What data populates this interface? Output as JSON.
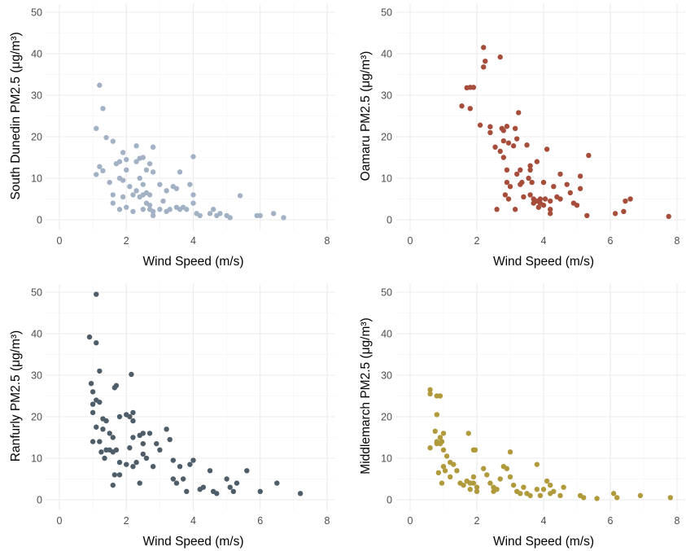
{
  "chart_data": [
    {
      "type": "scatter",
      "xlabel": "Wind Speed (m/s)",
      "ylabel": "South Dunedin PM2.5 (μg/m³)",
      "xlim": [
        0,
        8
      ],
      "ylim": [
        0,
        50
      ],
      "xticks": [
        0,
        2,
        4,
        8
      ],
      "yticks": [
        0,
        10,
        20,
        30,
        40,
        50
      ],
      "color": "#A2B2C4",
      "points": [
        [
          1.2,
          32.4
        ],
        [
          1.3,
          26.8
        ],
        [
          1.1,
          22.0
        ],
        [
          1.4,
          19.8
        ],
        [
          1.6,
          18.9
        ],
        [
          1.2,
          12.8
        ],
        [
          1.3,
          11.8
        ],
        [
          1.1,
          10.9
        ],
        [
          1.5,
          9.0
        ],
        [
          1.6,
          6.0
        ],
        [
          1.6,
          4.0
        ],
        [
          1.8,
          2.5
        ],
        [
          1.8,
          14.0
        ],
        [
          1.9,
          16.2
        ],
        [
          1.7,
          13.5
        ],
        [
          1.8,
          10.0
        ],
        [
          1.9,
          9.5
        ],
        [
          2.0,
          14.5
        ],
        [
          2.0,
          12.0
        ],
        [
          2.1,
          8.0
        ],
        [
          2.2,
          6.0
        ],
        [
          2.2,
          2.0
        ],
        [
          2.0,
          3.0
        ],
        [
          1.9,
          5.5
        ],
        [
          2.3,
          17.8
        ],
        [
          2.3,
          14.0
        ],
        [
          2.5,
          15.0
        ],
        [
          2.4,
          14.8
        ],
        [
          2.4,
          10.0
        ],
        [
          2.5,
          8.5
        ],
        [
          2.3,
          7.0
        ],
        [
          2.6,
          6.5
        ],
        [
          2.4,
          5.5
        ],
        [
          2.5,
          6.0
        ],
        [
          2.6,
          4.0
        ],
        [
          2.7,
          3.5
        ],
        [
          2.7,
          2.5
        ],
        [
          2.8,
          2.0
        ],
        [
          2.8,
          1.0
        ],
        [
          2.8,
          17.5
        ],
        [
          2.7,
          13.5
        ],
        [
          2.6,
          12.0
        ],
        [
          2.8,
          11.5
        ],
        [
          2.5,
          2.5
        ],
        [
          2.7,
          6.0
        ],
        [
          3.0,
          8.5
        ],
        [
          3.2,
          7.0
        ],
        [
          3.1,
          4.5
        ],
        [
          3.3,
          2.5
        ],
        [
          3.0,
          2.5
        ],
        [
          3.2,
          2.0
        ],
        [
          3.4,
          8.0
        ],
        [
          3.5,
          7.5
        ],
        [
          3.5,
          3.0
        ],
        [
          3.6,
          11.5
        ],
        [
          3.6,
          2.5
        ],
        [
          3.7,
          3.0
        ],
        [
          3.8,
          2.5
        ],
        [
          3.9,
          8.5
        ],
        [
          4.0,
          15.2
        ],
        [
          4.0,
          6.0
        ],
        [
          4.0,
          4.0
        ],
        [
          4.1,
          1.5
        ],
        [
          4.2,
          1.0
        ],
        [
          4.5,
          1.5
        ],
        [
          4.6,
          2.5
        ],
        [
          4.7,
          1.0
        ],
        [
          4.8,
          1.5
        ],
        [
          5.0,
          1.0
        ],
        [
          5.1,
          0.5
        ],
        [
          5.4,
          5.8
        ],
        [
          5.9,
          1.0
        ],
        [
          6.0,
          1.0
        ],
        [
          6.4,
          1.5
        ],
        [
          6.7,
          0.5
        ]
      ]
    },
    {
      "type": "scatter",
      "xlabel": "Wind Speed (m/s)",
      "ylabel": "Oamaru PM2.5 (μg/m³)",
      "xlim": [
        0,
        8
      ],
      "ylim": [
        0,
        50
      ],
      "xticks": [
        0,
        2,
        4,
        6,
        8
      ],
      "yticks": [
        0,
        10,
        20,
        30,
        40,
        50
      ],
      "color": "#A64D3B",
      "points": [
        [
          2.2,
          41.5
        ],
        [
          2.25,
          38.2
        ],
        [
          2.2,
          36.8
        ],
        [
          2.7,
          39.2
        ],
        [
          1.7,
          31.8
        ],
        [
          1.8,
          31.9
        ],
        [
          1.9,
          31.9
        ],
        [
          1.55,
          27.4
        ],
        [
          1.8,
          26.8
        ],
        [
          2.1,
          22.8
        ],
        [
          2.4,
          22.4
        ],
        [
          2.4,
          21.0
        ],
        [
          2.55,
          17.5
        ],
        [
          2.7,
          16.5
        ],
        [
          2.8,
          19.0
        ],
        [
          2.8,
          21.5
        ],
        [
          2.9,
          22.5
        ],
        [
          2.75,
          22.0
        ],
        [
          2.95,
          18.5
        ],
        [
          2.8,
          15.0
        ],
        [
          2.9,
          12.0
        ],
        [
          2.9,
          9.0
        ],
        [
          2.85,
          6.0
        ],
        [
          2.95,
          5.0
        ],
        [
          2.6,
          2.5
        ],
        [
          3.0,
          8.0
        ],
        [
          3.1,
          17.8
        ],
        [
          3.15,
          22.0
        ],
        [
          3.2,
          19.5
        ],
        [
          3.25,
          25.8
        ],
        [
          3.3,
          12.0
        ],
        [
          3.2,
          11.0
        ],
        [
          3.3,
          8.5
        ],
        [
          3.35,
          9.0
        ],
        [
          3.15,
          2.5
        ],
        [
          3.4,
          5.5
        ],
        [
          3.5,
          18.0
        ],
        [
          3.6,
          13.0
        ],
        [
          3.6,
          12.0
        ],
        [
          3.55,
          10.0
        ],
        [
          3.65,
          9.0
        ],
        [
          3.6,
          6.0
        ],
        [
          3.7,
          5.0
        ],
        [
          3.8,
          4.5
        ],
        [
          3.8,
          14.0
        ],
        [
          3.7,
          4.0
        ],
        [
          3.9,
          4.0
        ],
        [
          3.85,
          3.0
        ],
        [
          3.9,
          5.0
        ],
        [
          4.0,
          3.5
        ],
        [
          4.05,
          5.0
        ],
        [
          4.0,
          9.0
        ],
        [
          4.1,
          17.0
        ],
        [
          4.2,
          4.5
        ],
        [
          4.2,
          2.5
        ],
        [
          4.2,
          1.5
        ],
        [
          4.3,
          8.0
        ],
        [
          4.4,
          5.5
        ],
        [
          4.5,
          11.0
        ],
        [
          4.5,
          5.0
        ],
        [
          4.7,
          8.5
        ],
        [
          4.8,
          6.5
        ],
        [
          4.9,
          4.0
        ],
        [
          5.0,
          3.5
        ],
        [
          5.1,
          10.5
        ],
        [
          5.1,
          7.5
        ],
        [
          5.3,
          1.0
        ],
        [
          5.35,
          15.5
        ],
        [
          6.15,
          1.5
        ],
        [
          6.4,
          2.0
        ],
        [
          6.45,
          4.5
        ],
        [
          6.6,
          5.0
        ],
        [
          7.75,
          0.8
        ]
      ]
    },
    {
      "type": "scatter",
      "xlabel": "Wind Speed (m/s)",
      "ylabel": "Ranfurly PM2.5 (μg/m³)",
      "xlim": [
        0,
        8
      ],
      "ylim": [
        0,
        50
      ],
      "xticks": [
        0,
        2,
        4,
        6,
        8
      ],
      "yticks": [
        0,
        10,
        20,
        30,
        40,
        50
      ],
      "color": "#4F5D69",
      "points": [
        [
          1.1,
          49.5
        ],
        [
          0.9,
          39.2
        ],
        [
          1.1,
          37.8
        ],
        [
          0.95,
          28.0
        ],
        [
          1.2,
          31.0
        ],
        [
          1.0,
          26.0
        ],
        [
          1.1,
          24.0
        ],
        [
          1.2,
          23.5
        ],
        [
          1.0,
          21.0
        ],
        [
          1.0,
          23.0
        ],
        [
          1.3,
          19.5
        ],
        [
          1.1,
          17.5
        ],
        [
          1.3,
          17.0
        ],
        [
          1.0,
          14.0
        ],
        [
          1.2,
          14.0
        ],
        [
          1.25,
          11.5
        ],
        [
          1.4,
          12.0
        ],
        [
          1.35,
          10.0
        ],
        [
          1.5,
          12.0
        ],
        [
          1.6,
          11.5
        ],
        [
          1.6,
          15.0
        ],
        [
          1.5,
          16.0
        ],
        [
          1.4,
          19.0
        ],
        [
          1.7,
          27.5
        ],
        [
          1.65,
          27.0
        ],
        [
          1.8,
          20.0
        ],
        [
          1.7,
          12.0
        ],
        [
          1.8,
          9.0
        ],
        [
          1.8,
          6.0
        ],
        [
          1.65,
          6.0
        ],
        [
          1.6,
          3.5
        ],
        [
          2.0,
          20.5
        ],
        [
          2.1,
          20.0
        ],
        [
          2.15,
          30.2
        ],
        [
          2.2,
          21.0
        ],
        [
          2.2,
          19.0
        ],
        [
          2.2,
          15.0
        ],
        [
          2.1,
          12.5
        ],
        [
          2.0,
          8.5
        ],
        [
          2.2,
          8.0
        ],
        [
          2.3,
          9.0
        ],
        [
          2.4,
          4.0
        ],
        [
          2.4,
          15.5
        ],
        [
          2.5,
          16.0
        ],
        [
          2.5,
          13.5
        ],
        [
          2.5,
          11.0
        ],
        [
          2.6,
          10.0
        ],
        [
          2.7,
          16.0
        ],
        [
          2.8,
          8.0
        ],
        [
          2.9,
          13.5
        ],
        [
          3.0,
          12.0
        ],
        [
          3.2,
          17.0
        ],
        [
          3.3,
          14.5
        ],
        [
          3.4,
          9.5
        ],
        [
          3.4,
          5.0
        ],
        [
          3.5,
          4.0
        ],
        [
          3.6,
          8.0
        ],
        [
          3.7,
          5.0
        ],
        [
          3.8,
          2.0
        ],
        [
          3.9,
          8.5
        ],
        [
          4.0,
          9.5
        ],
        [
          4.2,
          2.5
        ],
        [
          4.3,
          3.0
        ],
        [
          4.5,
          7.0
        ],
        [
          4.6,
          2.0
        ],
        [
          4.7,
          1.5
        ],
        [
          5.0,
          5.0
        ],
        [
          5.1,
          3.0
        ],
        [
          5.2,
          2.0
        ],
        [
          5.3,
          4.0
        ],
        [
          5.6,
          7.0
        ],
        [
          6.0,
          2.0
        ],
        [
          6.5,
          4.0
        ],
        [
          7.2,
          1.5
        ]
      ]
    },
    {
      "type": "scatter",
      "xlabel": "Wind Speed (m/s)",
      "ylabel": "Middlemarch PM2.5 (μg/m³)",
      "xlim": [
        0,
        8
      ],
      "ylim": [
        0,
        50
      ],
      "xticks": [
        0,
        2,
        4,
        6,
        8
      ],
      "yticks": [
        0,
        10,
        20,
        30,
        40,
        50
      ],
      "color": "#B19A3C",
      "points": [
        [
          0.6,
          26.5
        ],
        [
          0.6,
          25.5
        ],
        [
          0.8,
          25.0
        ],
        [
          0.9,
          25.0
        ],
        [
          0.8,
          20.5
        ],
        [
          0.6,
          12.5
        ],
        [
          0.75,
          16.5
        ],
        [
          0.8,
          14.0
        ],
        [
          0.8,
          13.5
        ],
        [
          0.9,
          13.5
        ],
        [
          0.95,
          14.0
        ],
        [
          0.9,
          15.0
        ],
        [
          1.0,
          16.0
        ],
        [
          1.0,
          12.0
        ],
        [
          0.85,
          6.5
        ],
        [
          0.95,
          4.0
        ],
        [
          1.0,
          8.0
        ],
        [
          1.05,
          7.0
        ],
        [
          1.1,
          10.5
        ],
        [
          1.2,
          9.0
        ],
        [
          1.3,
          8.5
        ],
        [
          1.2,
          5.5
        ],
        [
          1.4,
          7.0
        ],
        [
          1.5,
          4.0
        ],
        [
          1.6,
          3.5
        ],
        [
          1.7,
          4.5
        ],
        [
          1.75,
          16.0
        ],
        [
          1.8,
          2.5
        ],
        [
          1.9,
          12.0
        ],
        [
          1.95,
          12.0
        ],
        [
          1.9,
          5.5
        ],
        [
          1.9,
          4.0
        ],
        [
          1.8,
          4.0
        ],
        [
          2.0,
          3.0
        ],
        [
          2.0,
          2.0
        ],
        [
          2.2,
          7.5
        ],
        [
          2.3,
          6.0
        ],
        [
          2.4,
          4.0
        ],
        [
          2.5,
          3.0
        ],
        [
          2.5,
          2.0
        ],
        [
          2.6,
          2.5
        ],
        [
          2.7,
          5.0
        ],
        [
          2.8,
          8.0
        ],
        [
          2.9,
          7.5
        ],
        [
          3.0,
          11.5
        ],
        [
          3.0,
          5.5
        ],
        [
          3.1,
          3.5
        ],
        [
          3.2,
          2.0
        ],
        [
          3.3,
          1.5
        ],
        [
          3.4,
          3.0
        ],
        [
          3.5,
          1.5
        ],
        [
          3.6,
          1.0
        ],
        [
          3.8,
          8.5
        ],
        [
          3.8,
          2.5
        ],
        [
          3.9,
          1.0
        ],
        [
          4.0,
          2.5
        ],
        [
          4.1,
          4.5
        ],
        [
          4.2,
          3.5
        ],
        [
          4.2,
          1.5
        ],
        [
          4.3,
          2.0
        ],
        [
          4.5,
          1.0
        ],
        [
          4.6,
          3.0
        ],
        [
          5.1,
          1.0
        ],
        [
          5.2,
          0.5
        ],
        [
          5.6,
          0.3
        ],
        [
          6.1,
          1.5
        ],
        [
          6.2,
          0.5
        ],
        [
          6.9,
          1.0
        ],
        [
          7.8,
          0.5
        ]
      ]
    }
  ]
}
